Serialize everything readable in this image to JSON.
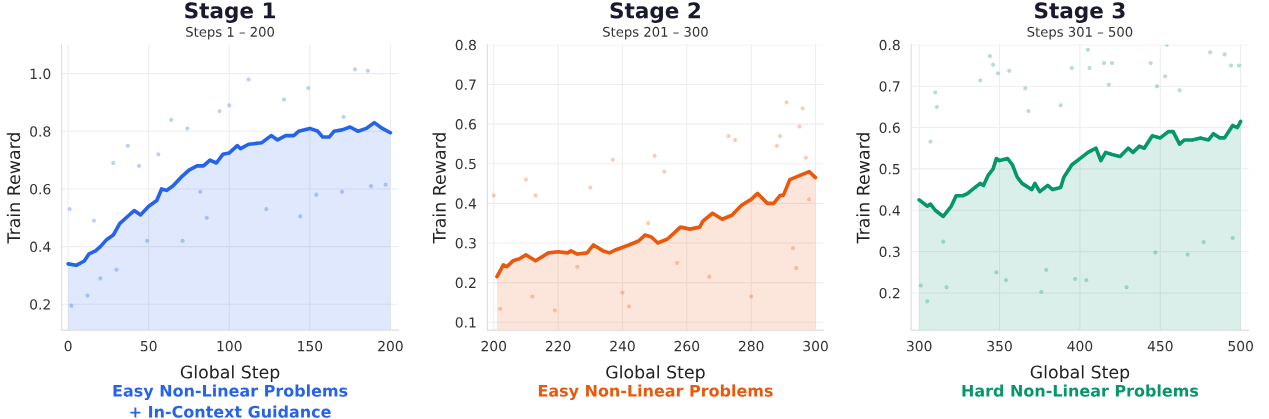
{
  "chart_data": [
    {
      "type": "area",
      "title": "Stage 1",
      "subtitle": "Steps 1 – 200",
      "xlabel": "Global Step",
      "ylabel": "Train Reward",
      "annotations": [
        "Easy Non-Linear Problems\n+ In-Context Guidance"
      ],
      "xlim": [
        -4,
        205
      ],
      "xticks": [
        0,
        50,
        100,
        150,
        200
      ],
      "ylim": [
        0.11,
        1.1
      ],
      "yticks": [
        0.2,
        0.4,
        0.6,
        0.8,
        {
          "value": 1,
          "label": "1.0"
        }
      ],
      "grid": true,
      "series": [
        {
          "type": "scatter",
          "color": "#2563eb",
          "x": [
            1,
            2,
            12,
            16,
            20,
            28,
            37,
            44,
            56,
            64,
            74,
            71,
            86,
            94,
            100,
            112,
            123,
            134,
            144,
            149,
            154,
            170,
            178,
            186,
            188,
            197,
            171,
            82,
            49,
            30
          ],
          "values": [
            0.53,
            0.195,
            0.23,
            0.49,
            0.29,
            0.69,
            0.75,
            0.68,
            0.72,
            0.84,
            0.81,
            0.42,
            0.5,
            0.87,
            0.89,
            0.98,
            0.53,
            0.91,
            0.505,
            0.95,
            0.58,
            0.59,
            1.015,
            1.01,
            0.61,
            0.615,
            0.85,
            0.59,
            0.42,
            0.32
          ]
        },
        {
          "color": "#2563eb",
          "x": [
            0,
            5,
            10,
            13,
            17,
            20,
            24,
            28,
            32,
            36,
            41,
            45,
            50,
            55,
            58,
            61,
            65,
            70,
            75,
            80,
            84,
            88,
            92,
            96,
            100,
            105,
            107,
            112,
            120,
            126,
            130,
            135,
            140,
            143,
            150,
            155,
            158,
            162,
            165,
            170,
            175,
            180,
            185,
            190,
            195,
            200
          ],
          "values": [
            0.34,
            0.335,
            0.35,
            0.375,
            0.385,
            0.4,
            0.425,
            0.44,
            0.48,
            0.5,
            0.525,
            0.51,
            0.54,
            0.56,
            0.6,
            0.595,
            0.61,
            0.64,
            0.665,
            0.68,
            0.68,
            0.7,
            0.69,
            0.72,
            0.725,
            0.75,
            0.74,
            0.755,
            0.76,
            0.785,
            0.77,
            0.785,
            0.785,
            0.8,
            0.81,
            0.8,
            0.78,
            0.78,
            0.8,
            0.805,
            0.815,
            0.8,
            0.81,
            0.83,
            0.81,
            0.795
          ]
        }
      ]
    },
    {
      "type": "area",
      "title": "Stage 2",
      "subtitle": "Steps 201 – 300",
      "xlabel": "Global Step",
      "ylabel": "Train Reward",
      "annotations": [
        "Easy Non-Linear Problems"
      ],
      "xlim": [
        198,
        302.5
      ],
      "xticks": [
        200,
        220,
        240,
        260,
        280,
        300
      ],
      "ylim": [
        0.08,
        0.8
      ],
      "yticks": [
        0.1,
        0.2,
        0.3,
        0.4,
        0.5,
        0.6,
        0.7,
        0.8
      ],
      "grid": true,
      "series": [
        {
          "type": "scatter",
          "color": "#ea580c",
          "x": [
            200,
            202,
            210,
            213,
            219,
            230,
            237,
            240,
            242,
            248,
            250,
            253,
            257,
            267,
            273,
            275,
            280,
            288,
            289,
            291,
            296,
            295,
            297,
            294,
            293,
            298,
            212,
            226
          ],
          "values": [
            0.42,
            0.134,
            0.46,
            0.42,
            0.13,
            0.44,
            0.51,
            0.175,
            0.14,
            0.35,
            0.52,
            0.48,
            0.25,
            0.215,
            0.57,
            0.56,
            0.165,
            0.545,
            0.57,
            0.655,
            0.64,
            0.594,
            0.515,
            0.237,
            0.287,
            0.41,
            0.165,
            0.24
          ]
        },
        {
          "color": "#ea580c",
          "x": [
            201,
            203,
            204,
            206,
            208,
            210,
            213,
            217,
            220,
            223,
            224,
            226,
            229,
            231,
            234,
            236,
            238,
            242,
            245,
            247,
            249,
            251,
            254,
            256,
            258,
            261,
            264,
            265,
            268,
            271,
            274,
            277,
            280,
            282,
            285,
            287,
            289,
            290,
            292,
            295,
            298,
            300
          ],
          "values": [
            0.215,
            0.245,
            0.24,
            0.255,
            0.26,
            0.27,
            0.255,
            0.275,
            0.278,
            0.275,
            0.28,
            0.272,
            0.275,
            0.295,
            0.28,
            0.275,
            0.283,
            0.295,
            0.305,
            0.32,
            0.315,
            0.3,
            0.31,
            0.325,
            0.34,
            0.335,
            0.34,
            0.355,
            0.375,
            0.36,
            0.37,
            0.395,
            0.41,
            0.425,
            0.4,
            0.4,
            0.42,
            0.42,
            0.46,
            0.47,
            0.48,
            0.465
          ]
        }
      ]
    },
    {
      "type": "area",
      "title": "Stage 3",
      "subtitle": "Steps 301 – 500",
      "xlabel": "Global Step",
      "ylabel": "Train Reward",
      "annotations": [
        "Hard Non-Linear Problems"
      ],
      "xlim": [
        295,
        505
      ],
      "xticks": [
        300,
        350,
        400,
        450,
        500
      ],
      "ylim": [
        0.11,
        0.8
      ],
      "yticks": [
        0.2,
        0.3,
        0.4,
        0.5,
        0.6,
        0.7,
        0.8
      ],
      "grid": true,
      "series": [
        {
          "type": "scatter",
          "color": "#059669",
          "x": [
            301,
            305,
            310,
            311,
            307,
            315,
            317,
            338,
            344,
            346,
            349,
            356,
            348,
            354,
            366,
            368,
            376,
            379,
            388,
            395,
            397,
            404,
            405,
            406,
            415,
            418,
            420,
            429,
            444,
            448,
            447,
            453,
            454,
            462,
            467,
            481,
            490,
            495,
            499,
            494,
            477
          ],
          "values": [
            0.218,
            0.18,
            0.685,
            0.65,
            0.566,
            0.324,
            0.214,
            0.714,
            0.773,
            0.752,
            0.731,
            0.737,
            0.25,
            0.231,
            0.695,
            0.64,
            0.203,
            0.256,
            0.654,
            0.744,
            0.234,
            0.231,
            0.788,
            0.744,
            0.756,
            0.704,
            0.756,
            0.214,
            0.756,
            0.7,
            0.298,
            0.724,
            0.8,
            0.69,
            0.293,
            0.782,
            0.777,
            0.333,
            0.75,
            0.75,
            0.323
          ]
        },
        {
          "color": "#059669",
          "x": [
            300,
            305,
            307,
            310,
            315,
            320,
            323,
            327,
            330,
            333,
            338,
            340,
            343,
            346,
            348,
            350,
            355,
            358,
            361,
            364,
            370,
            372,
            375,
            380,
            383,
            388,
            390,
            395,
            400,
            405,
            410,
            413,
            416,
            420,
            425,
            430,
            433,
            437,
            440,
            445,
            450,
            455,
            458,
            462,
            465,
            470,
            475,
            480,
            483,
            487,
            490,
            495,
            498,
            500
          ],
          "values": [
            0.425,
            0.41,
            0.415,
            0.4,
            0.385,
            0.41,
            0.435,
            0.435,
            0.44,
            0.45,
            0.465,
            0.46,
            0.485,
            0.5,
            0.525,
            0.52,
            0.525,
            0.51,
            0.48,
            0.465,
            0.45,
            0.465,
            0.445,
            0.46,
            0.45,
            0.455,
            0.48,
            0.51,
            0.525,
            0.54,
            0.55,
            0.52,
            0.54,
            0.535,
            0.53,
            0.55,
            0.54,
            0.555,
            0.55,
            0.58,
            0.575,
            0.59,
            0.59,
            0.56,
            0.57,
            0.57,
            0.575,
            0.57,
            0.585,
            0.575,
            0.575,
            0.605,
            0.6,
            0.615
          ]
        }
      ]
    }
  ]
}
